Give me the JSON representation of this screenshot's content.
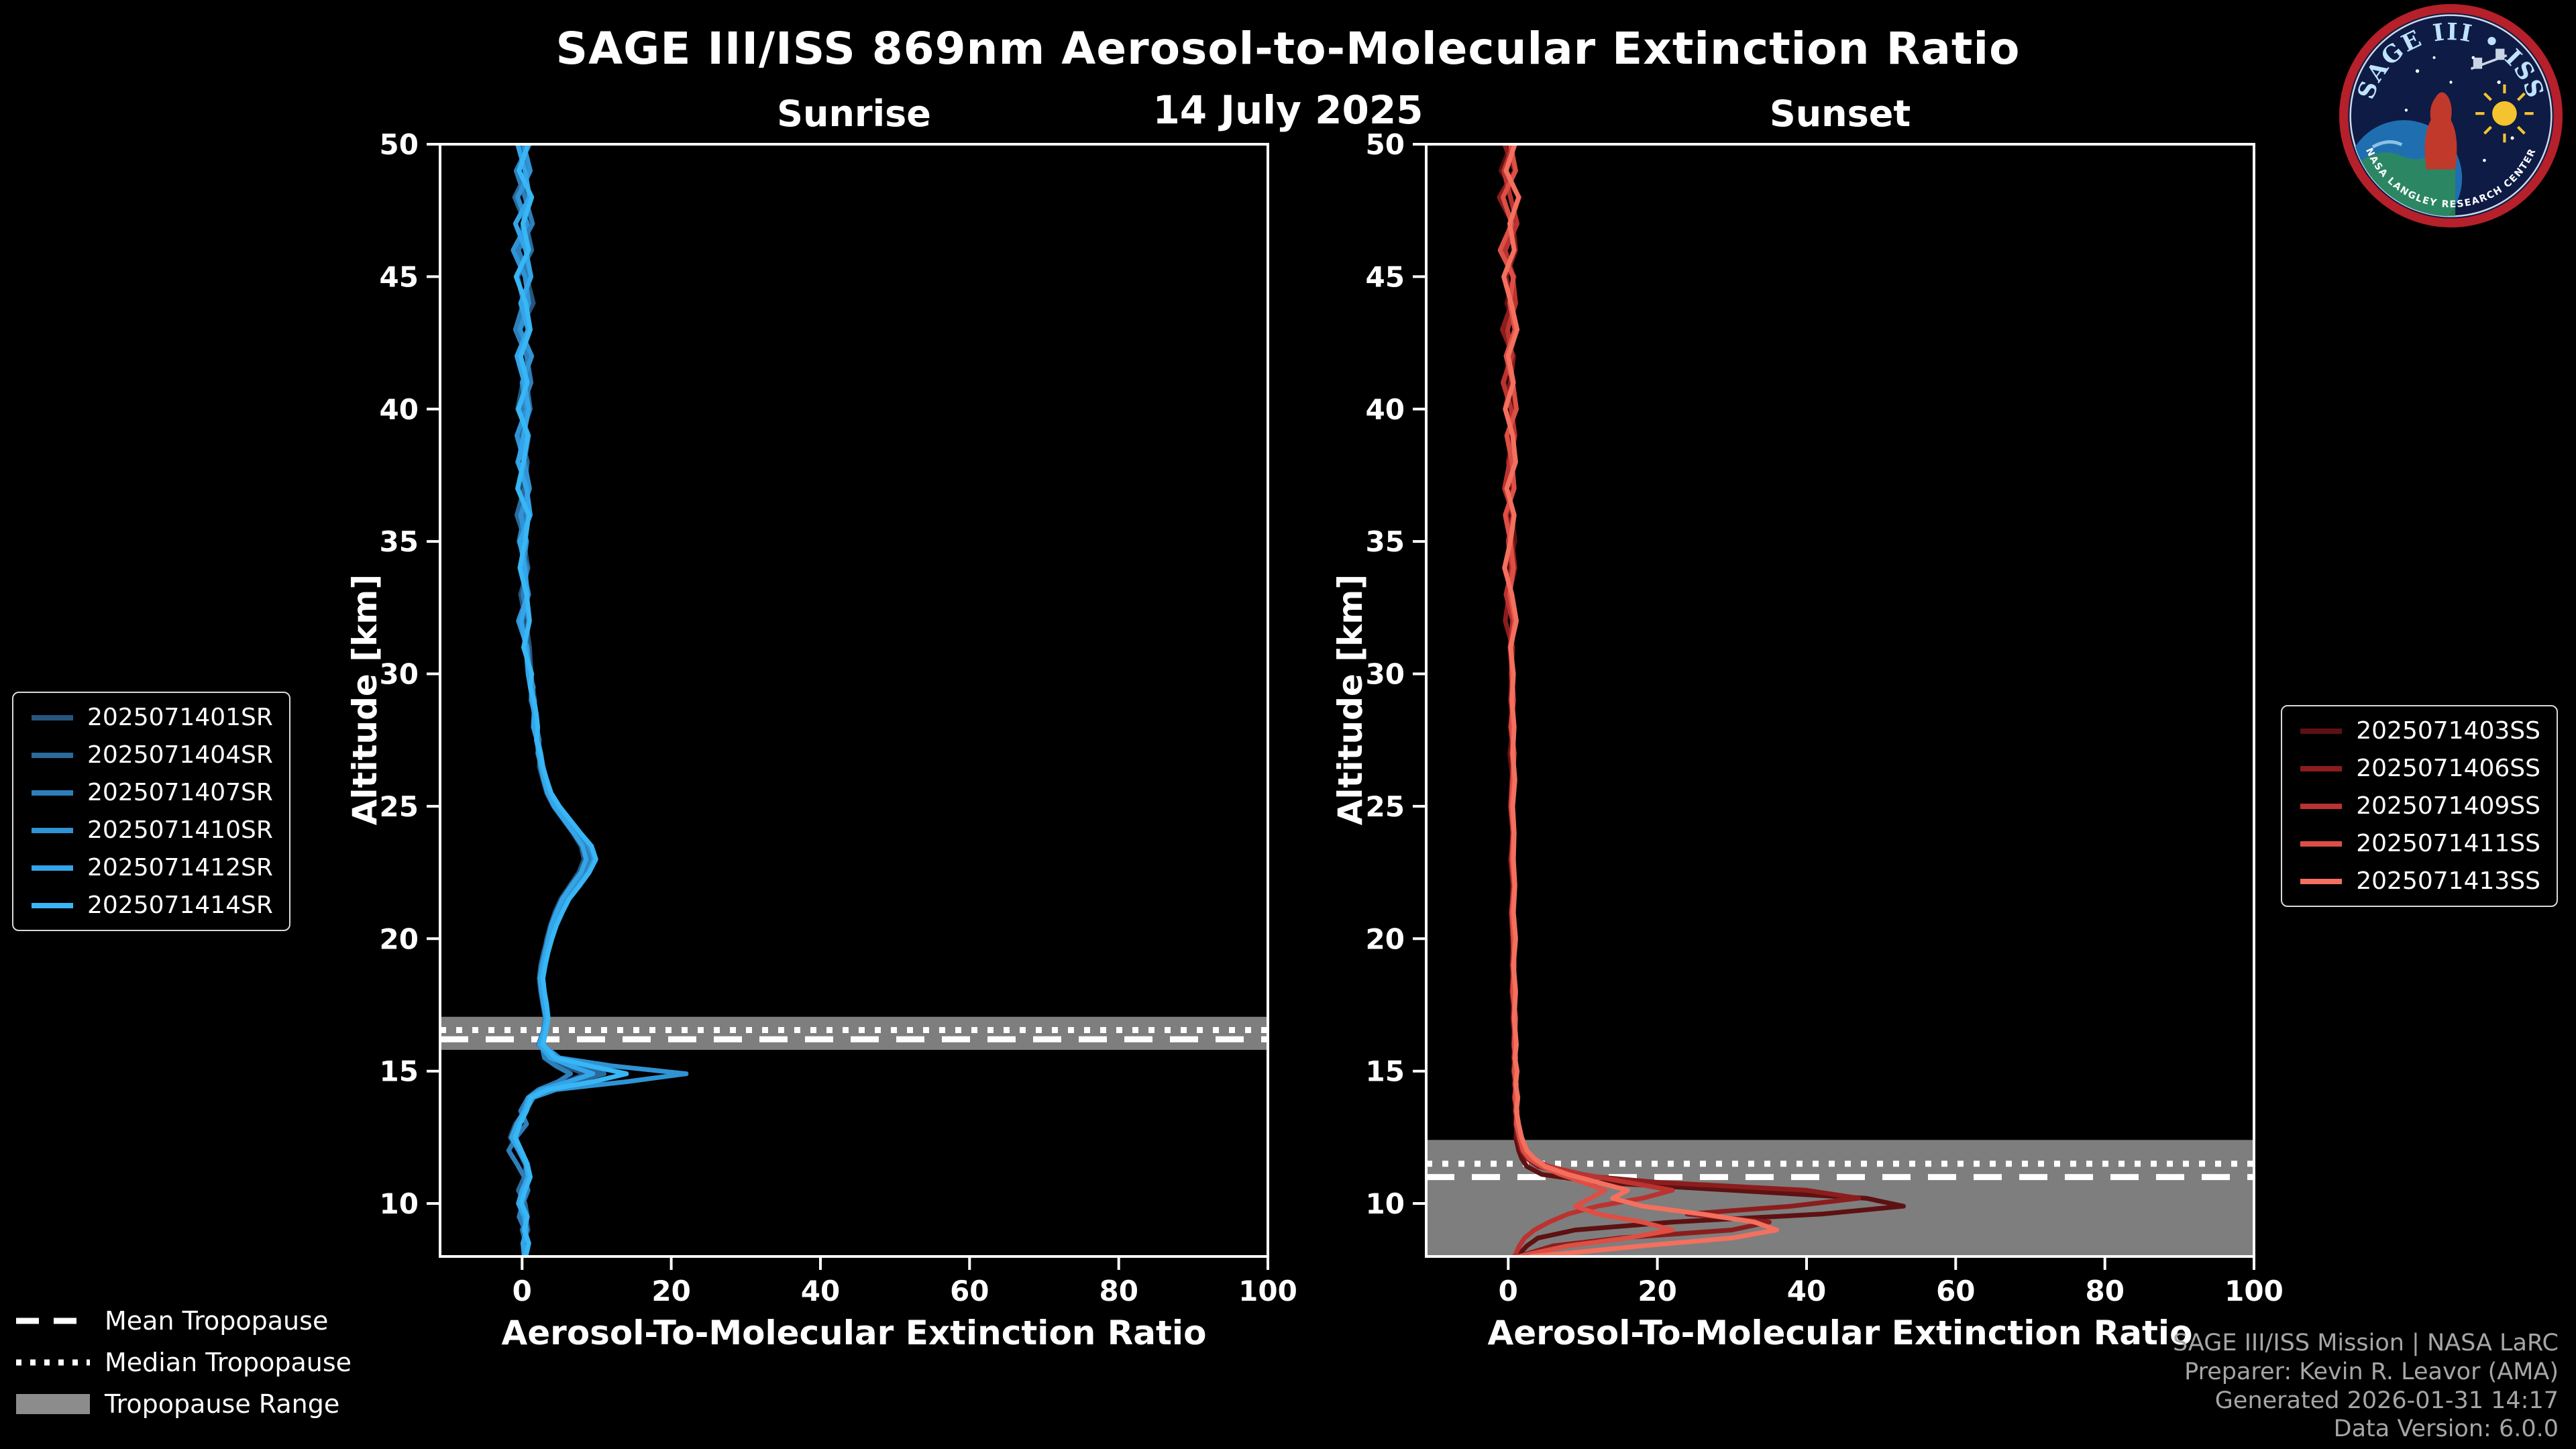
{
  "header": {
    "title": "SAGE III/ISS 869nm Aerosol-to-Molecular Extinction Ratio",
    "date": "14 July 2025"
  },
  "logo": {
    "title": "SAGE III • ISS",
    "ring_text": "NASA LANGLEY RESEARCH CENTER"
  },
  "tropopause_legend": {
    "mean": "Mean Tropopause",
    "median": "Median Tropopause",
    "range": "Tropopause Range"
  },
  "credits": {
    "line1": "SAGE III/ISS Mission | NASA LaRC",
    "line2": "Preparer: Kevin R. Leavor (AMA)",
    "line3": "Generated 2026-01-31 14:17",
    "line4": "Data Version: 6.0.0"
  },
  "chart_data": {
    "type": "line",
    "title": "SAGE III/ISS 869nm Aerosol-to-Molecular Extinction Ratio",
    "subtitle": "14 July 2025",
    "xlabel": "Aerosol-To-Molecular Extinction Ratio",
    "ylabel": "Altitude [km]",
    "xlim": [
      -11,
      100
    ],
    "ylim": [
      8,
      50
    ],
    "xticks": [
      0,
      20,
      40,
      60,
      80,
      100
    ],
    "yticks": [
      10,
      15,
      20,
      25,
      30,
      35,
      40,
      45,
      50
    ],
    "grid": false,
    "legend_position": "outside",
    "band_color": "#8c8c8c",
    "panels": [
      {
        "title": "Sunrise",
        "tropopause": {
          "mean": 16.2,
          "median": 16.55,
          "range": [
            15.8,
            17.05
          ]
        },
        "altitudes": [
          50,
          49,
          48,
          47,
          46,
          45,
          44,
          43,
          42,
          41,
          40,
          39,
          38,
          37,
          36,
          35,
          34,
          33,
          32,
          31,
          30,
          29.5,
          29,
          28.5,
          28,
          27.5,
          27,
          26.5,
          26,
          25.5,
          25,
          24.5,
          24,
          23.5,
          23,
          22.5,
          22,
          21.5,
          21,
          20.5,
          20,
          19.5,
          19,
          18.5,
          18,
          17.5,
          17,
          16.5,
          16,
          15.5,
          15.2,
          14.9,
          14.6,
          14.3,
          14,
          13.5,
          13,
          12.5,
          12,
          11.5,
          11,
          10.5,
          10,
          9.5,
          9,
          8.5,
          8
        ],
        "series": [
          {
            "name": "2025071401SR",
            "color": "#27557d",
            "values": [
              0.5,
              -0.5,
              1.2,
              0.2,
              -0.8,
              0.6,
              1.5,
              -0.3,
              0.8,
              0.1,
              -0.6,
              0.9,
              0.3,
              -0.4,
              0.7,
              0.2,
              0.8,
              -0.2,
              0.5,
              1.0,
              1.2,
              1.4,
              1.7,
              1.6,
              2.0,
              2.2,
              2.5,
              2.3,
              2.8,
              3.3,
              4.2,
              5.5,
              6.8,
              7.9,
              8.3,
              7.6,
              6.4,
              5.2,
              4.4,
              3.8,
              3.3,
              3.0,
              2.6,
              2.4,
              2.7,
              3.0,
              3.2,
              2.9,
              2.4,
              3.6,
              5.5,
              8.5,
              6.0,
              2.8,
              1.2,
              0.4,
              -0.9,
              -1.6,
              -0.5,
              0.4,
              0.9,
              0.2,
              -0.3,
              0.5,
              0.8,
              0.1,
              0.4
            ]
          },
          {
            "name": "2025071404SR",
            "color": "#2a6a9c",
            "values": [
              -0.3,
              0.8,
              -1.0,
              0.5,
              1.3,
              -0.6,
              0.2,
              1.0,
              -0.4,
              0.6,
              1.1,
              -0.2,
              0.7,
              0.3,
              -0.7,
              0.5,
              0.1,
              0.9,
              -0.3,
              0.6,
              0.9,
              1.2,
              1.5,
              1.8,
              1.6,
              2.1,
              2.4,
              2.7,
              3.1,
              3.6,
              4.6,
              6.0,
              7.4,
              8.8,
              9.2,
              8.1,
              6.8,
              5.6,
              4.8,
              4.0,
              3.4,
              2.9,
              2.5,
              2.3,
              2.5,
              2.8,
              3.1,
              2.8,
              2.2,
              4.2,
              7.5,
              11.0,
              7.0,
              3.2,
              1.0,
              0.2,
              -0.6,
              -1.2,
              -0.3,
              0.6,
              0.3,
              -0.5,
              0.4,
              0.7,
              0.0,
              0.5,
              0.2
            ]
          },
          {
            "name": "2025071407SR",
            "color": "#2d7fba",
            "values": [
              1.0,
              -0.8,
              0.4,
              1.4,
              -0.5,
              0.9,
              0.2,
              -0.9,
              0.6,
              1.2,
              -0.1,
              0.5,
              -0.6,
              0.8,
              0.3,
              -0.4,
              0.7,
              0.1,
              0.9,
              0.4,
              1.1,
              1.3,
              1.2,
              1.7,
              1.9,
              2.3,
              2.1,
              2.6,
              3.0,
              3.5,
              4.4,
              5.8,
              7.0,
              8.4,
              8.9,
              8.5,
              7.2,
              6.0,
              5.0,
              4.3,
              3.7,
              3.2,
              2.8,
              2.5,
              2.6,
              3.0,
              3.3,
              3.0,
              2.6,
              3.0,
              4.5,
              6.5,
              4.8,
              2.2,
              0.8,
              -0.2,
              0.6,
              -0.8,
              -1.8,
              -0.7,
              0.3,
              0.8,
              0.1,
              -0.4,
              0.4,
              0.7,
              0.3
            ]
          },
          {
            "name": "2025071410SR",
            "color": "#3093d4",
            "values": [
              0.2,
              1.1,
              -0.6,
              0.7,
              -1.2,
              0.4,
              0.9,
              -0.3,
              1.3,
              0.0,
              0.6,
              -0.7,
              0.3,
              1.0,
              -0.2,
              0.6,
              0.1,
              0.8,
              -0.5,
              0.7,
              1.0,
              1.5,
              1.3,
              1.8,
              2.0,
              1.9,
              2.3,
              2.7,
              3.2,
              3.8,
              4.8,
              6.2,
              7.6,
              9.0,
              9.6,
              8.8,
              7.4,
              6.1,
              5.2,
              4.5,
              3.9,
              3.4,
              3.0,
              2.7,
              2.9,
              3.2,
              3.4,
              3.1,
              2.7,
              5.0,
              12.0,
              22.0,
              14.0,
              4.5,
              1.5,
              0.5,
              -0.4,
              -1.0,
              -0.2,
              0.5,
              1.0,
              0.3,
              -0.2,
              0.6,
              0.2,
              0.8,
              0.4
            ]
          },
          {
            "name": "2025071412SR",
            "color": "#33a5e8",
            "values": [
              -0.6,
              0.4,
              1.0,
              -0.9,
              0.5,
              1.2,
              -0.2,
              0.8,
              -0.7,
              0.3,
              0.9,
              0.2,
              -0.5,
              0.6,
              1.1,
              -0.3,
              0.4,
              0.7,
              -0.1,
              0.5,
              0.8,
              1.1,
              1.4,
              1.6,
              1.5,
              2.0,
              2.2,
              2.5,
              2.9,
              3.4,
              4.3,
              5.6,
              6.9,
              8.1,
              8.6,
              7.9,
              6.6,
              5.4,
              4.6,
              3.9,
              3.5,
              3.1,
              2.7,
              2.4,
              2.6,
              2.9,
              3.2,
              2.9,
              2.3,
              3.8,
              6.5,
              9.5,
              6.2,
              2.6,
              0.9,
              0.3,
              -0.7,
              -1.4,
              -0.4,
              0.5,
              0.8,
              0.0,
              -0.5,
              0.3,
              0.6,
              0.1,
              0.3
            ]
          },
          {
            "name": "2025071414SR",
            "color": "#38b6f5",
            "values": [
              0.8,
              -0.4,
              1.3,
              0.1,
              0.9,
              -0.8,
              0.5,
              1.1,
              -0.2,
              0.7,
              -0.5,
              0.8,
              0.2,
              -0.6,
              0.9,
              0.4,
              -0.3,
              0.6,
              1.0,
              0.2,
              1.3,
              1.1,
              1.6,
              1.9,
              2.1,
              2.0,
              2.5,
              2.8,
              3.3,
              3.9,
              5.0,
              6.4,
              7.8,
              9.3,
              9.9,
              9.0,
              7.7,
              6.3,
              5.4,
              4.6,
              4.0,
              3.5,
              3.1,
              2.8,
              3.0,
              3.3,
              3.5,
              3.2,
              2.8,
              4.5,
              9.0,
              14.0,
              9.5,
              3.5,
              1.2,
              0.6,
              -0.3,
              -0.9,
              -0.1,
              0.7,
              1.1,
              0.4,
              -0.1,
              0.7,
              0.3,
              0.9,
              0.5
            ]
          }
        ]
      },
      {
        "title": "Sunset",
        "tropopause": {
          "mean": 11.0,
          "median": 11.5,
          "range": [
            8,
            12.4
          ]
        },
        "altitudes": [
          50,
          49,
          48,
          47,
          46,
          45,
          44,
          43,
          42,
          41,
          40,
          39,
          38,
          37,
          36,
          35,
          34,
          33,
          32,
          31,
          30,
          29,
          28,
          27,
          26,
          25,
          24,
          23,
          22,
          21,
          20,
          19,
          18,
          17,
          16,
          15.5,
          15,
          14.5,
          14,
          13.5,
          13,
          12.5,
          12,
          11.7,
          11.4,
          11.1,
          10.8,
          10.5,
          10.2,
          9.9,
          9.6,
          9.3,
          9,
          8.7,
          8.4,
          8.1,
          8
        ],
        "series": [
          {
            "name": "2025071403SS",
            "color": "#5e1112",
            "values": [
              0.4,
              -1.0,
              1.5,
              0.3,
              -0.6,
              0.8,
              -0.2,
              1.1,
              0.2,
              -0.5,
              0.7,
              0.1,
              0.6,
              -0.3,
              0.5,
              0.9,
              -0.1,
              0.4,
              0.8,
              0.2,
              0.5,
              0.3,
              0.7,
              0.2,
              0.6,
              0.4,
              0.8,
              0.3,
              0.6,
              0.5,
              0.7,
              0.5,
              0.8,
              0.6,
              0.9,
              0.7,
              1.0,
              0.8,
              1.1,
              0.9,
              1.2,
              1.0,
              1.4,
              1.8,
              2.5,
              4.5,
              12.0,
              30.0,
              48.0,
              53.0,
              42.0,
              22.0,
              9.0,
              4.0,
              2.5,
              1.5,
              1.2
            ]
          },
          {
            "name": "2025071406SS",
            "color": "#8c1d1d",
            "values": [
              -0.5,
              0.9,
              -1.2,
              0.6,
              1.0,
              -0.3,
              0.5,
              -0.8,
              0.7,
              0.3,
              -0.4,
              0.8,
              0.0,
              0.6,
              -0.2,
              0.5,
              0.9,
              0.1,
              -0.4,
              0.6,
              0.4,
              0.6,
              0.3,
              0.7,
              0.5,
              0.3,
              0.6,
              0.4,
              0.7,
              0.4,
              0.6,
              0.7,
              0.5,
              0.9,
              0.7,
              0.9,
              0.7,
              1.0,
              0.8,
              1.1,
              1.0,
              1.3,
              1.8,
              2.5,
              4.0,
              8.0,
              20.0,
              40.0,
              47.0,
              38.0,
              24.0,
              35.0,
              30.0,
              15.0,
              6.0,
              2.5,
              1.5
            ]
          },
          {
            "name": "2025071409SS",
            "color": "#bb3330",
            "values": [
              0.7,
              -0.6,
              0.3,
              1.2,
              -0.4,
              0.6,
              1.0,
              -0.1,
              0.5,
              -0.7,
              0.4,
              0.9,
              0.2,
              -0.5,
              0.7,
              0.0,
              0.5,
              -0.3,
              0.6,
              0.3,
              0.6,
              0.4,
              0.7,
              0.5,
              0.8,
              0.5,
              0.7,
              0.6,
              0.8,
              0.6,
              0.9,
              0.6,
              0.9,
              0.7,
              1.0,
              0.8,
              1.1,
              0.9,
              1.2,
              1.0,
              1.3,
              1.6,
              2.2,
              3.0,
              5.5,
              10.0,
              16.0,
              22.0,
              18.0,
              12.0,
              8.0,
              5.5,
              3.5,
              2.2,
              1.5,
              1.0,
              0.8
            ]
          },
          {
            "name": "2025071411SS",
            "color": "#dd4f44",
            "values": [
              0.3,
              1.0,
              -0.7,
              0.5,
              -1.1,
              0.7,
              0.2,
              0.9,
              -0.3,
              0.6,
              1.1,
              -0.2,
              0.5,
              0.8,
              -0.4,
              0.3,
              0.7,
              0.2,
              0.9,
              0.4,
              0.5,
              0.7,
              0.4,
              0.8,
              0.6,
              0.4,
              0.7,
              0.5,
              0.8,
              0.5,
              0.7,
              0.8,
              0.6,
              1.0,
              0.8,
              1.0,
              0.8,
              1.1,
              0.9,
              1.2,
              1.1,
              1.5,
              2.0,
              2.8,
              4.5,
              7.0,
              10.0,
              13.0,
              11.0,
              9.0,
              12.0,
              18.0,
              22.0,
              16.0,
              8.0,
              3.0,
              1.5
            ]
          },
          {
            "name": "2025071413SS",
            "color": "#f4705e",
            "values": [
              0.9,
              -0.3,
              1.4,
              0.2,
              0.8,
              -0.6,
              0.4,
              1.2,
              0.0,
              0.7,
              -0.4,
              0.6,
              1.0,
              -0.2,
              0.8,
              0.3,
              -0.5,
              0.5,
              1.1,
              0.3,
              0.7,
              0.5,
              0.8,
              0.6,
              0.9,
              0.6,
              0.8,
              0.7,
              0.9,
              0.7,
              1.0,
              0.7,
              1.0,
              0.8,
              1.1,
              0.9,
              1.2,
              1.0,
              1.3,
              1.1,
              1.4,
              1.8,
              2.5,
              3.5,
              5.0,
              8.0,
              12.0,
              16.0,
              14.0,
              18.0,
              26.0,
              33.0,
              36.0,
              30.0,
              18.0,
              7.0,
              3.0
            ]
          }
        ]
      }
    ]
  }
}
